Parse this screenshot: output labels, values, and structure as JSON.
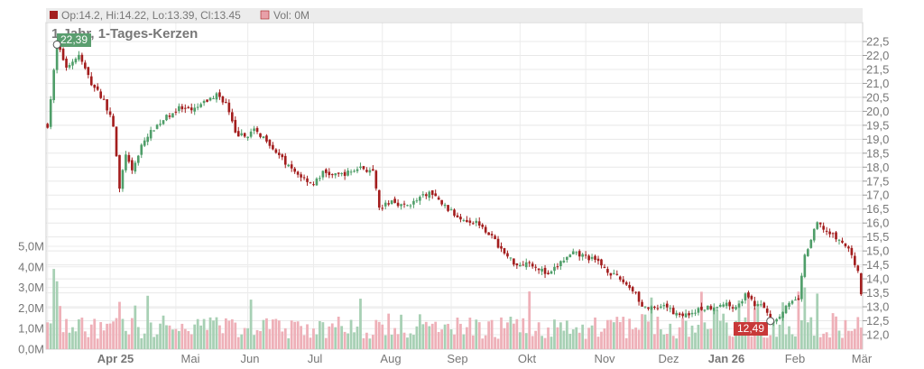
{
  "legend": {
    "ohlc_text": "Op:14.2, Hi:14.22, Lo:13.39, Cl:13.45",
    "volume_text": "Vol: 0M",
    "ohlc_color": "#a31d1d",
    "volume_color": "#e8a0a8"
  },
  "chart_data": {
    "type": "candlestick",
    "title": "1 Jahr, 1-Tages-Kerzen",
    "price_axis": {
      "ticks": [
        "12,0",
        "12,5",
        "13,0",
        "13,5",
        "14,0",
        "14,5",
        "15,0",
        "15,5",
        "16,0",
        "16,5",
        "17,0",
        "17,5",
        "18,0",
        "18,5",
        "19,0",
        "19,5",
        "20,0",
        "20,5",
        "21,0",
        "21,5",
        "22,0",
        "22,5"
      ],
      "tick_values": [
        12.0,
        12.5,
        13.0,
        13.5,
        14.0,
        14.5,
        15.0,
        15.5,
        16.0,
        16.5,
        17.0,
        17.5,
        18.0,
        18.5,
        19.0,
        19.5,
        20.0,
        20.5,
        21.0,
        21.5,
        22.0,
        22.5
      ]
    },
    "volume_axis": {
      "ticks": [
        "0,0M",
        "1,0M",
        "2,0M",
        "3,0M",
        "4,0M",
        "5,0M"
      ],
      "tick_values": [
        0,
        1,
        2,
        3,
        4,
        5
      ]
    },
    "x_axis": {
      "labels": [
        "Apr 25",
        "Mai",
        "Jun",
        "Jul",
        "Aug",
        "Sep",
        "Okt",
        "Nov",
        "Dez",
        "Jan 26",
        "Feb",
        "Mär"
      ],
      "bold": [
        "Apr 25",
        "Jan 26"
      ]
    },
    "price_path": [
      [
        0,
        19.5
      ],
      [
        3,
        22.39
      ],
      [
        6,
        21.6
      ],
      [
        10,
        22.0
      ],
      [
        14,
        21.0
      ],
      [
        18,
        20.4
      ],
      [
        21,
        19.5
      ],
      [
        23,
        17.2
      ],
      [
        25,
        18.5
      ],
      [
        27,
        17.8
      ],
      [
        30,
        18.8
      ],
      [
        34,
        19.4
      ],
      [
        38,
        19.8
      ],
      [
        42,
        20.1
      ],
      [
        46,
        20.0
      ],
      [
        50,
        20.3
      ],
      [
        54,
        20.6
      ],
      [
        57,
        20.3
      ],
      [
        60,
        19.2
      ],
      [
        63,
        19.1
      ],
      [
        66,
        19.3
      ],
      [
        70,
        19.0
      ],
      [
        74,
        18.4
      ],
      [
        78,
        17.9
      ],
      [
        82,
        17.6
      ],
      [
        85,
        17.4
      ],
      [
        88,
        17.8
      ],
      [
        92,
        17.7
      ],
      [
        96,
        17.8
      ],
      [
        100,
        18.0
      ],
      [
        104,
        17.8
      ],
      [
        106,
        16.5
      ],
      [
        110,
        16.8
      ],
      [
        114,
        16.6
      ],
      [
        118,
        16.8
      ],
      [
        122,
        17.1
      ],
      [
        126,
        16.7
      ],
      [
        130,
        16.3
      ],
      [
        134,
        16.1
      ],
      [
        138,
        16.0
      ],
      [
        142,
        15.5
      ],
      [
        146,
        14.9
      ],
      [
        150,
        14.5
      ],
      [
        154,
        14.6
      ],
      [
        158,
        14.3
      ],
      [
        160,
        14.1
      ],
      [
        164,
        14.6
      ],
      [
        168,
        14.9
      ],
      [
        172,
        14.8
      ],
      [
        176,
        14.6
      ],
      [
        180,
        14.2
      ],
      [
        184,
        13.9
      ],
      [
        188,
        13.5
      ],
      [
        190,
        13.0
      ],
      [
        194,
        12.9
      ],
      [
        198,
        13.0
      ],
      [
        200,
        12.8
      ],
      [
        204,
        12.7
      ],
      [
        208,
        12.9
      ],
      [
        212,
        13.0
      ],
      [
        216,
        13.1
      ],
      [
        220,
        13.0
      ],
      [
        223,
        13.4
      ],
      [
        226,
        13.1
      ],
      [
        229,
        13.0
      ],
      [
        231,
        12.5
      ],
      [
        233,
        12.6
      ],
      [
        236,
        13.0
      ],
      [
        240,
        13.3
      ],
      [
        242,
        14.8
      ],
      [
        246,
        16.0
      ],
      [
        250,
        15.6
      ],
      [
        254,
        15.3
      ],
      [
        257,
        14.9
      ],
      [
        259,
        14.2
      ],
      [
        260,
        13.45
      ]
    ],
    "n_days": 261,
    "markers": {
      "high": {
        "label": "22,39",
        "value": 22.39,
        "day": 3
      },
      "low": {
        "label": "12,49",
        "value": 12.49,
        "day": 231
      }
    }
  }
}
